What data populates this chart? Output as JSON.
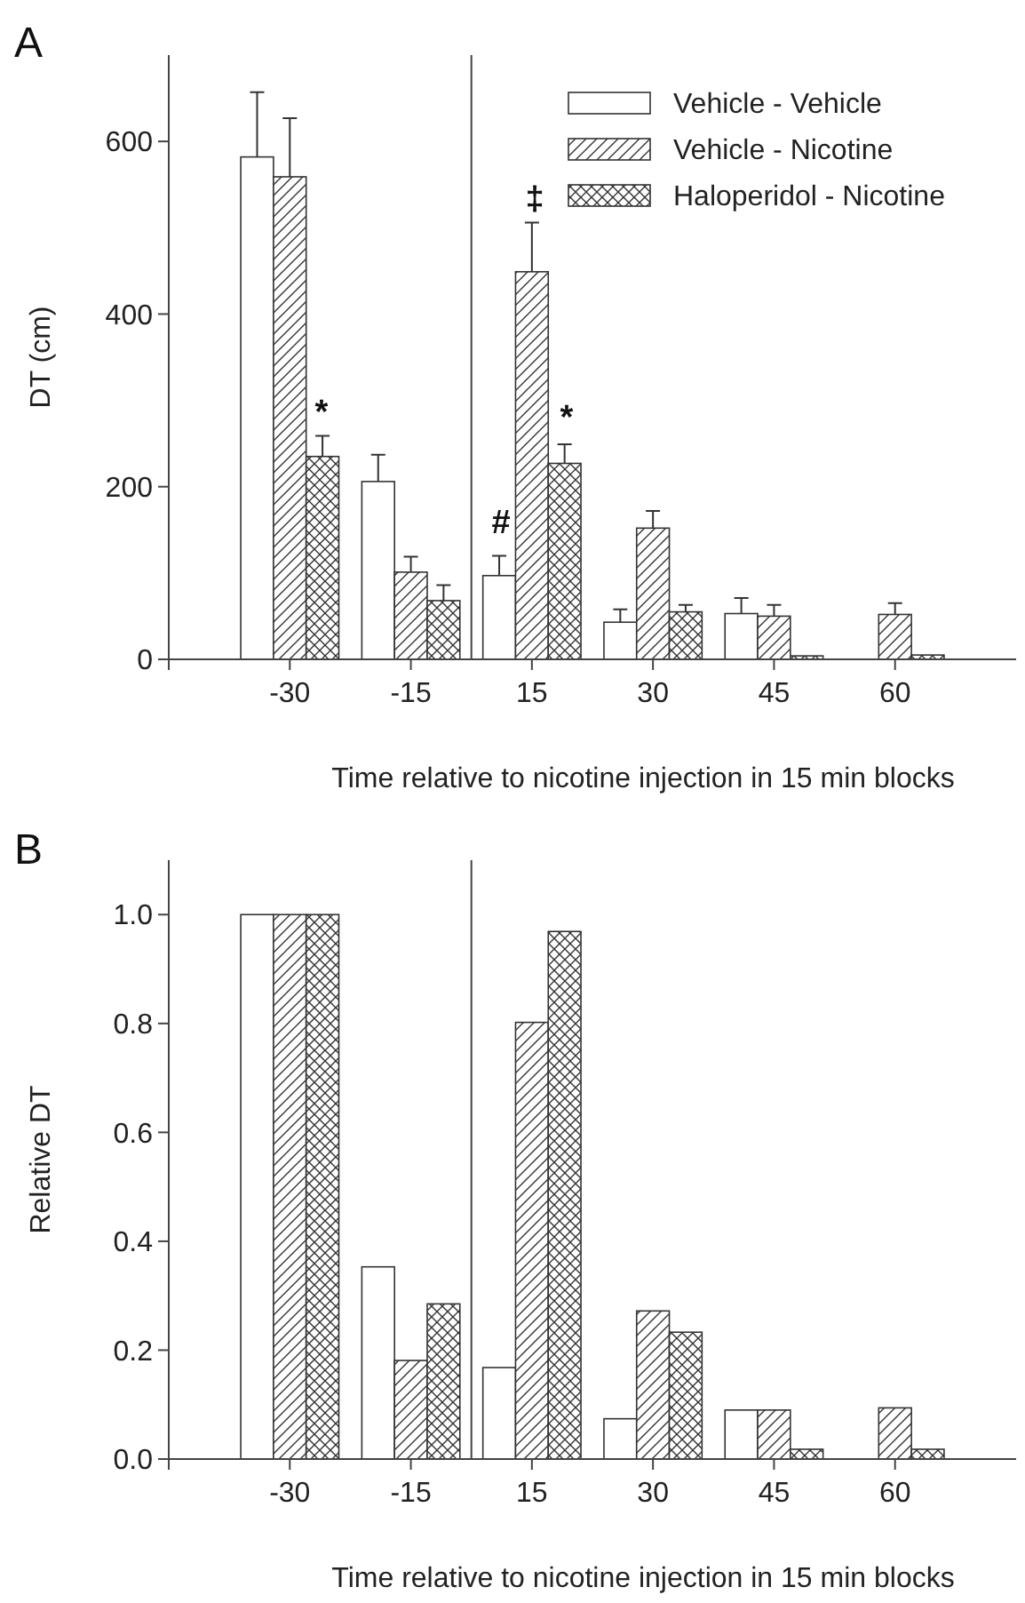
{
  "chart_data": [
    {
      "type": "bar",
      "ylabel": "DT (cm)",
      "xlabel": "Time relative to nicotine injection in 15 min blocks",
      "categories": [
        null,
        "-30",
        "-15",
        "15",
        "30",
        "45",
        "60",
        null
      ],
      "ylim": [
        0,
        700
      ],
      "yticks": [
        0,
        200,
        400,
        600
      ],
      "legend": "top right",
      "series": [
        {
          "name": "Vehicle - Vehicle",
          "color": "#ffffff",
          "values": [
            null,
            582,
            206,
            97,
            43,
            53,
            null,
            null
          ],
          "errors": [
            null,
            [
              582,
              657
            ],
            [
              206,
              237
            ],
            [
              97,
              120
            ],
            [
              43,
              58
            ],
            [
              53,
              71
            ],
            null,
            null
          ]
        },
        {
          "name": "Vehicle - Nicotine",
          "color": "#333333",
          "values": [
            null,
            559,
            101,
            449,
            152,
            50,
            52,
            null
          ],
          "errors": [
            null,
            [
              559,
              627
            ],
            [
              101,
              119
            ],
            [
              449,
              506
            ],
            [
              152,
              172
            ],
            [
              50,
              63
            ],
            [
              52,
              65
            ],
            null
          ]
        },
        {
          "name": "Haloperidol - Nicotine",
          "color": "#333333",
          "values": [
            null,
            235,
            68,
            227,
            55,
            4,
            5,
            null
          ],
          "errors": [
            null,
            [
              235,
              259
            ],
            [
              68,
              86
            ],
            [
              227,
              249
            ],
            [
              55,
              63
            ],
            null,
            null,
            null
          ]
        }
      ],
      "annotations": [
        "A",
        "*",
        "#",
        "‡",
        "*"
      ]
    },
    {
      "type": "bar",
      "ylabel": "Relative DT",
      "xlabel": "Time relative to nicotine injection in 15 min blocks",
      "categories": [
        null,
        "-30",
        "-15",
        "15",
        "30",
        "45",
        "60",
        null
      ],
      "ylim": [
        0,
        1.1
      ],
      "yticks": [
        {
          "value": 0,
          "label": "0.0"
        },
        {
          "value": 0.2,
          "label": "0.2"
        },
        {
          "value": 0.4,
          "label": "0.4"
        },
        {
          "value": 0.6,
          "label": "0.6"
        },
        {
          "value": 0.8,
          "label": "0.8"
        },
        {
          "value": 1,
          "label": "1.0"
        }
      ],
      "series": [
        {
          "color": "#ffffff",
          "values": [
            null,
            1.0,
            0.353,
            0.168,
            0.074,
            0.09,
            null,
            null
          ]
        },
        {
          "color": "#333333",
          "values": [
            null,
            1.0,
            0.181,
            0.802,
            0.272,
            0.09,
            0.094,
            null
          ]
        },
        {
          "color": "#333333",
          "values": [
            null,
            1.0,
            0.285,
            0.969,
            0.233,
            0.018,
            0.018,
            null
          ]
        }
      ],
      "annotations": [
        "B"
      ]
    }
  ]
}
